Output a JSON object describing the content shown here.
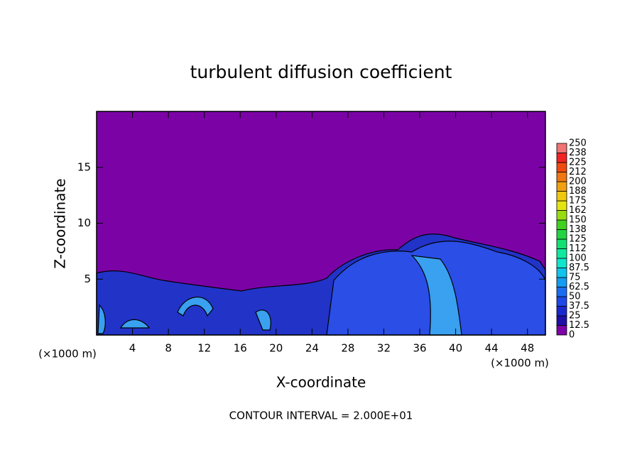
{
  "chart_data": {
    "type": "contour",
    "title": "turbulent diffusion coefficient",
    "x_label": "X-coordinate",
    "y_label": "Z-coordinate",
    "x_unit_label": "(×1000 m)",
    "annotation": "CONTOUR INTERVAL = 2.000E+01",
    "xlim": [
      0,
      50
    ],
    "xticks": [
      4,
      8,
      12,
      16,
      20,
      24,
      28,
      32,
      36,
      40,
      44,
      48
    ],
    "ylim": [
      0,
      20
    ],
    "yticks": [
      5,
      10,
      15
    ],
    "background_color": "#7b03a6",
    "colorbar": {
      "levels": [
        0,
        12.5,
        25,
        37.5,
        50,
        62.5,
        75,
        87.5,
        100,
        112,
        125,
        138,
        150,
        162,
        175,
        188,
        200,
        212,
        225,
        238,
        250
      ],
      "colors": [
        "#7b03a6",
        "#2010a8",
        "#1a28d0",
        "#1e48e8",
        "#1c6cf2",
        "#129cf2",
        "#10c4ec",
        "#10e6cc",
        "#10e8a0",
        "#14e072",
        "#22d444",
        "#40d020",
        "#98dc10",
        "#e4e412",
        "#f0c810",
        "#f0a010",
        "#f07810",
        "#f04a10",
        "#f02222",
        "#f07474"
      ]
    }
  }
}
